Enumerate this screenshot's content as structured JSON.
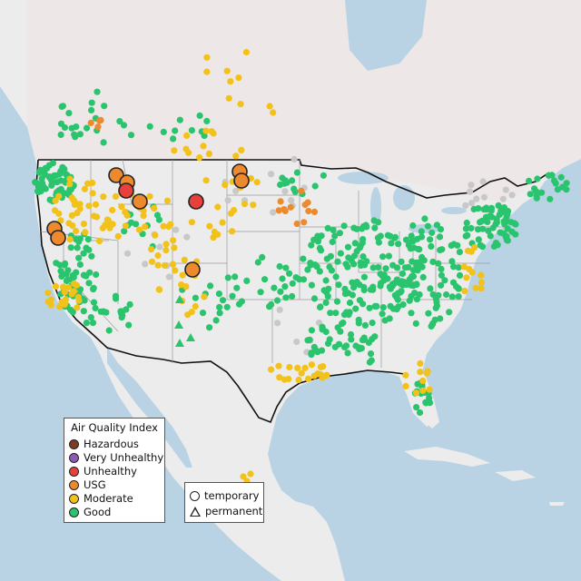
{
  "legend": {
    "title": "Air Quality Index",
    "categories": [
      {
        "label": "Hazardous",
        "color": "#7e3a22"
      },
      {
        "label": "Very Unhealthy",
        "color": "#8e5ab5"
      },
      {
        "label": "Unhealthy",
        "color": "#e8413c"
      },
      {
        "label": "USG",
        "color": "#ee8a2e"
      },
      {
        "label": "Moderate",
        "color": "#f2c21a"
      },
      {
        "label": "Good",
        "color": "#2bc46e"
      }
    ]
  },
  "shape_legend": {
    "items": [
      {
        "label": "temporary",
        "shape": "circle"
      },
      {
        "label": "permanent",
        "shape": "triangle"
      }
    ]
  },
  "colors": {
    "land": "#ececec",
    "land_alt": "#f1e3e3",
    "water": "#b9d3e4",
    "border": "#111111",
    "no_data": "#c8c8c8"
  }
}
